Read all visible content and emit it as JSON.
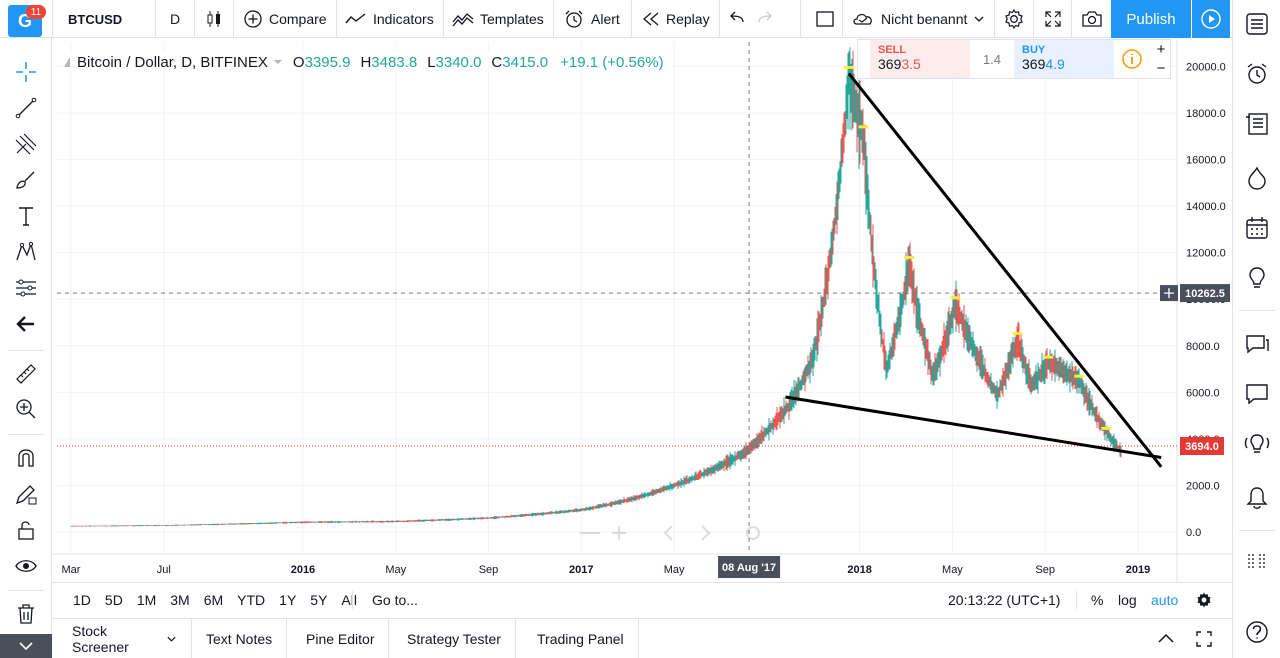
{
  "toolbar": {
    "logo_badge": "11",
    "logo_letter": "G",
    "symbol": "BTCUSD",
    "interval": "D",
    "compare": "Compare",
    "indicators": "Indicators",
    "templates": "Templates",
    "alert": "Alert",
    "replay": "Replay",
    "layout_name": "Nicht benannt",
    "publish": "Publish"
  },
  "legend": {
    "title": "Bitcoin / Dollar, D, BITFINEX",
    "o_label": "O",
    "o": "3395.9",
    "h_label": "H",
    "h": "3483.8",
    "l_label": "L",
    "l": "3340.0",
    "c_label": "C",
    "c": "3415.0",
    "change": "+19.1 (+0.56%)"
  },
  "trade": {
    "sell_label": "SELL",
    "sell_price_a": "369",
    "sell_price_b": "3.5",
    "spread": "1.4",
    "buy_label": "BUY",
    "buy_price_a": "369",
    "buy_price_b": "4.9"
  },
  "price_axis": {
    "ticks": [
      "20000.0",
      "18000.0",
      "16000.0",
      "14000.0",
      "12000.0",
      "10000.0",
      "8000.0",
      "6000.0",
      "4000.0",
      "2000.0",
      "0.0"
    ],
    "crosshair_label": "10262.5",
    "last_price_label": "3694.0"
  },
  "time_axis": {
    "ticks": [
      "Mar",
      "Jul",
      "2016",
      "May",
      "Sep",
      "2017",
      "May",
      "2018",
      "May",
      "Sep",
      "2019"
    ],
    "crosshair_label": "08 Aug '17"
  },
  "bottom_bar": {
    "ranges": [
      "1D",
      "5D",
      "1M",
      "3M",
      "6M",
      "YTD",
      "1Y",
      "5Y",
      "All"
    ],
    "goto": "Go to...",
    "clock": "20:13:22 (UTC+1)",
    "percent": "%",
    "log": "log",
    "auto": "auto"
  },
  "panel_tabs": [
    "Stock Screener",
    "Text Notes",
    "Pine Editor",
    "Strategy Tester",
    "Trading Panel"
  ],
  "colors": {
    "up": "#26a69a",
    "down": "#ef5350",
    "accent": "#2196f3",
    "last_price": "#e53935",
    "marker": "#ffeb3b"
  },
  "chart_data": {
    "type": "line",
    "symbol": "BTCUSD",
    "exchange": "BITFINEX",
    "interval": "D",
    "ylim": [
      0,
      21000
    ],
    "series": [
      {
        "x": [
          "2015-03",
          "2015-07",
          "2016-01",
          "2016-05",
          "2016-09",
          "2017-01",
          "2017-05",
          "2017-08",
          "2017-10",
          "2017-11",
          "2017-12-17",
          "2018-01-06",
          "2018-02-06",
          "2018-03-05",
          "2018-04-06",
          "2018-05-05",
          "2018-06-29",
          "2018-07-25",
          "2018-08-14",
          "2018-09-05",
          "2018-10-15",
          "2018-11-20",
          "2018-12-10"
        ],
        "values": [
          250,
          280,
          420,
          450,
          600,
          950,
          2000,
          3400,
          5500,
          7500,
          19500,
          17000,
          7000,
          11500,
          6700,
          9800,
          5900,
          8300,
          6300,
          7300,
          6500,
          4300,
          3400
        ]
      }
    ],
    "trendlines": [
      {
        "from": [
          "2017-12-17",
          19700
        ],
        "to": [
          "2019-02",
          2800
        ]
      },
      {
        "from": [
          "2017-09-25",
          5800
        ],
        "to": [
          "2019-02",
          3200
        ]
      }
    ],
    "crosshair": {
      "x": "2017-08-08",
      "y": 10262.5
    },
    "last_price": 3694.0
  }
}
